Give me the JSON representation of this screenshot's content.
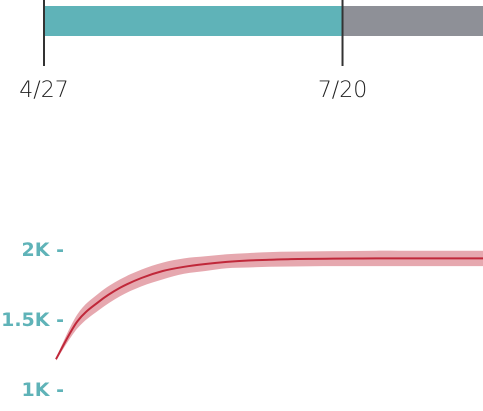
{
  "timeline": {
    "start_label": "4/27",
    "end_label": "7/20",
    "elapsed_fraction_of_bar": 0.68,
    "elapsed_color": "#5fb3b8",
    "remaining_color": "#8e9097"
  },
  "chart_data": {
    "type": "line",
    "title": "",
    "xlabel": "",
    "ylabel": "",
    "y_ticks": [
      {
        "value": 2000,
        "label": "2K -"
      },
      {
        "value": 1500,
        "label": "1.5K -"
      },
      {
        "value": 1000,
        "label": "1K -"
      }
    ],
    "ylim": [
      950,
      2200
    ],
    "xlim": [
      0,
      100
    ],
    "tick_color": "#5fb3b8",
    "line_color": "#c0283a",
    "band_color": "#e5a3ab",
    "grid": false,
    "series": [
      {
        "x": [
          0,
          5,
          10,
          15,
          20,
          25,
          30,
          35,
          40,
          45,
          50,
          55,
          60,
          65,
          70,
          75,
          80,
          85,
          90,
          95,
          100
        ],
        "y": [
          1220,
          1490,
          1630,
          1730,
          1800,
          1850,
          1880,
          1900,
          1915,
          1925,
          1930,
          1935,
          1937,
          1938,
          1939,
          1940,
          1940,
          1940,
          1940,
          1940,
          1940
        ],
        "lower": [
          1210,
          1440,
          1570,
          1670,
          1740,
          1790,
          1830,
          1850,
          1870,
          1875,
          1880,
          1882,
          1884,
          1885,
          1885,
          1885,
          1885,
          1885,
          1885,
          1885,
          1885
        ],
        "upper": [
          1230,
          1540,
          1690,
          1790,
          1860,
          1910,
          1940,
          1955,
          1970,
          1978,
          1985,
          1988,
          1990,
          1992,
          1993,
          1995,
          1995,
          1995,
          1995,
          1995,
          1995
        ]
      }
    ]
  }
}
